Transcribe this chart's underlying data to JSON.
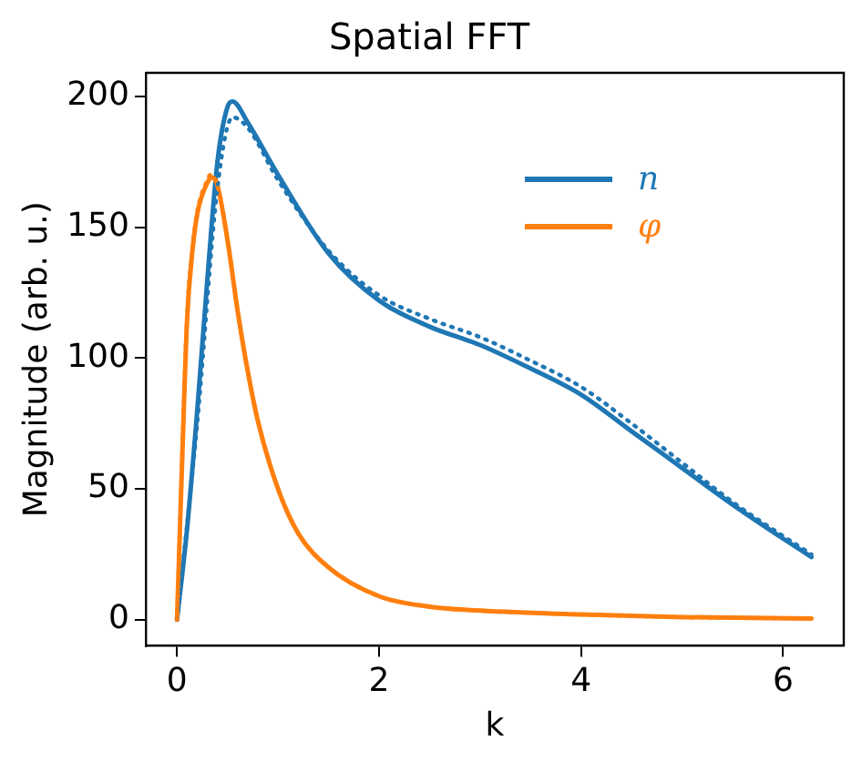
{
  "chart_data": {
    "type": "line",
    "title": "Spatial FFT",
    "xlabel": "k",
    "ylabel": "Magnitude (arb. u.)",
    "xlim": [
      -0.31,
      6.6
    ],
    "ylim": [
      -10,
      209
    ],
    "xticks": [
      0,
      2,
      4,
      6
    ],
    "yticks": [
      0,
      50,
      100,
      150,
      200
    ],
    "grid": false,
    "legend": "top right",
    "marker": "none",
    "series": [
      {
        "name": "𝑛",
        "color": "#1f77b4",
        "line_style": "solid",
        "x": [
          0,
          0.1,
          0.2,
          0.3,
          0.4,
          0.5,
          0.55,
          0.7,
          1.0,
          1.5,
          2.0,
          2.5,
          3.0,
          3.5,
          4.0,
          4.5,
          5.0,
          5.5,
          6.0,
          6.28
        ],
        "values": [
          0,
          35,
          80,
          130,
          175,
          196,
          198,
          190,
          170,
          140,
          122,
          112,
          105,
          96,
          86,
          72,
          58,
          44,
          31,
          24
        ]
      },
      {
        "color": "#1f77b4",
        "line_style": "dotted",
        "x": [
          0,
          0.2,
          0.4,
          0.55,
          0.7,
          1.0,
          1.5,
          2.0,
          2.5,
          3.0,
          3.5,
          4.0,
          4.5,
          5.0,
          5.5,
          6.0,
          6.28
        ],
        "values": [
          0,
          75,
          165,
          192,
          188,
          168,
          141,
          124,
          115,
          108,
          99,
          89,
          75,
          60,
          45,
          32,
          25
        ]
      },
      {
        "name": "𝜑",
        "color": "#ff7f0e",
        "line_style": "solid",
        "x": [
          0,
          0.05,
          0.1,
          0.15,
          0.2,
          0.3,
          0.35,
          0.4,
          0.5,
          0.6,
          0.7,
          0.8,
          1.0,
          1.2,
          1.5,
          2.0,
          2.5,
          3.0,
          4.0,
          5.0,
          6.28
        ],
        "values": [
          0,
          60,
          115,
          140,
          155,
          167,
          169,
          166,
          145,
          118,
          95,
          76,
          50,
          33,
          20,
          9,
          5,
          3.5,
          2,
          1,
          0.5
        ]
      },
      {
        "color": "#ff7f0e",
        "line_style": "dotted",
        "x": [
          0,
          0.05,
          0.1,
          0.15,
          0.2,
          0.3,
          0.33,
          0.4,
          0.5,
          0.6,
          0.7,
          0.8,
          1.0,
          1.2,
          1.5,
          2.0,
          2.5,
          3.0,
          4.0,
          5.0,
          6.28
        ],
        "values": [
          0,
          62,
          117,
          141,
          156,
          168,
          170,
          166,
          145,
          118,
          95,
          76,
          50,
          33,
          20,
          9,
          5,
          3.5,
          2,
          1,
          0.5
        ]
      }
    ]
  }
}
